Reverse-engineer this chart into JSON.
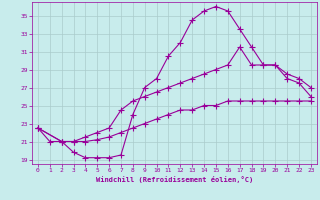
{
  "xlabel": "Windchill (Refroidissement éolien,°C)",
  "bg_color": "#c8ecec",
  "line_color": "#990099",
  "grid_color": "#aacccc",
  "xlim": [
    -0.5,
    23.5
  ],
  "ylim": [
    18.5,
    36.5
  ],
  "yticks": [
    19,
    21,
    23,
    25,
    27,
    29,
    31,
    33,
    35
  ],
  "xticks": [
    0,
    1,
    2,
    3,
    4,
    5,
    6,
    7,
    8,
    9,
    10,
    11,
    12,
    13,
    14,
    15,
    16,
    17,
    18,
    19,
    20,
    21,
    22,
    23
  ],
  "line1_x": [
    0,
    1,
    2,
    3,
    4,
    5,
    6,
    7,
    8,
    9,
    10,
    11,
    12,
    13,
    14,
    15,
    16,
    17,
    18,
    19,
    20,
    21,
    22,
    23
  ],
  "line1_y": [
    22.5,
    21.0,
    21.0,
    19.8,
    19.2,
    19.2,
    19.2,
    19.5,
    24.0,
    27.0,
    28.0,
    30.5,
    32.0,
    34.5,
    35.5,
    36.0,
    35.5,
    33.5,
    31.5,
    29.5,
    29.5,
    28.0,
    27.5,
    26.0
  ],
  "line2_x": [
    0,
    2,
    3,
    4,
    5,
    6,
    7,
    8,
    9,
    10,
    11,
    12,
    13,
    14,
    15,
    16,
    17,
    18,
    19,
    20,
    21,
    22,
    23
  ],
  "line2_y": [
    22.5,
    21.0,
    21.0,
    21.5,
    22.0,
    22.5,
    24.5,
    25.5,
    26.0,
    26.5,
    27.0,
    27.5,
    28.0,
    28.5,
    29.0,
    29.5,
    31.5,
    29.5,
    29.5,
    29.5,
    28.5,
    28.0,
    27.0
  ],
  "line3_x": [
    0,
    2,
    3,
    4,
    5,
    6,
    7,
    8,
    9,
    10,
    11,
    12,
    13,
    14,
    15,
    16,
    17,
    18,
    19,
    20,
    21,
    22,
    23
  ],
  "line3_y": [
    22.5,
    21.0,
    21.0,
    21.0,
    21.2,
    21.5,
    22.0,
    22.5,
    23.0,
    23.5,
    24.0,
    24.5,
    24.5,
    25.0,
    25.0,
    25.5,
    25.5,
    25.5,
    25.5,
    25.5,
    25.5,
    25.5,
    25.5
  ]
}
